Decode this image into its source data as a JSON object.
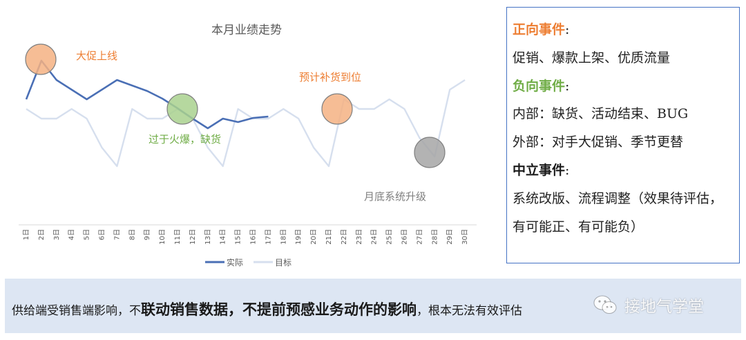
{
  "chart_data": {
    "type": "line",
    "title": "本月业绩走势",
    "categories": [
      "1日",
      "2日",
      "3日",
      "4日",
      "5日",
      "6日",
      "7日",
      "8日",
      "9日",
      "10日",
      "11日",
      "12日",
      "13日",
      "14日",
      "15日",
      "16日",
      "17日",
      "18日",
      "19日",
      "20日",
      "21日",
      "22日",
      "23日",
      "24日",
      "25日",
      "26日",
      "27日",
      "28日",
      "29日",
      "30日"
    ],
    "series": [
      {
        "name": "实际",
        "color": "#4a6fb5",
        "values": [
          144,
          88,
          116,
          130,
          144,
          130,
          116,
          124,
          132,
          143,
          157,
          172,
          186,
          172,
          177,
          171,
          169,
          null,
          null,
          null,
          null,
          null,
          null,
          null,
          null,
          null,
          null,
          null,
          null,
          null
        ]
      },
      {
        "name": "目标",
        "color": "#d6dfee",
        "values": [
          158,
          172,
          172,
          158,
          172,
          214,
          241,
          158,
          172,
          172,
          158,
          172,
          214,
          241,
          158,
          172,
          172,
          158,
          172,
          214,
          241,
          144,
          158,
          158,
          144,
          158,
          200,
          227,
          130,
          116
        ]
      }
    ],
    "value_scale_note": "unlabeled value axis; values read on an inverted relative scale",
    "legend": "bottom",
    "grid": false,
    "annotations": [
      {
        "text": "大促上线",
        "color": "#ed7d31",
        "circle_at": "2日",
        "circle_color": "#f4b183"
      },
      {
        "text": "过于火爆，缺货",
        "color": "#70ad47",
        "circle_at": "11日",
        "circle_color": "#a9d18e"
      },
      {
        "text": "预计补货到位",
        "color": "#ed7d31",
        "circle_at": "22日",
        "circle_color": "#f4b183"
      },
      {
        "text": "月底系统升级",
        "color": "#7f7f7f",
        "circle_at": "28日",
        "circle_color": "#a6a6a6"
      }
    ]
  },
  "events": {
    "positive_title": "正向事件",
    "positive_color": "#ed7d31",
    "positive_body": "促销、爆款上架、优质流量",
    "negative_title": "负向事件",
    "negative_color": "#70ad47",
    "negative_internal": "内部：缺货、活动结束、BUG",
    "negative_external": "外部：对手大促销、季节更替",
    "neutral_title": "中立事件",
    "neutral_color": "#1a1a1a",
    "neutral_body": "系统改版、流程调整（效果待评估，有可能正、有可能负）",
    "colon": ":"
  },
  "bottom": {
    "prefix": "供给端受销售端影响，不",
    "emphasis": "联动销售数据，不提前预感业务动作的影响",
    "suffix": "，根本无法有效评估"
  },
  "watermark": {
    "text": "接地气学堂",
    "icon": "wechat-icon"
  }
}
